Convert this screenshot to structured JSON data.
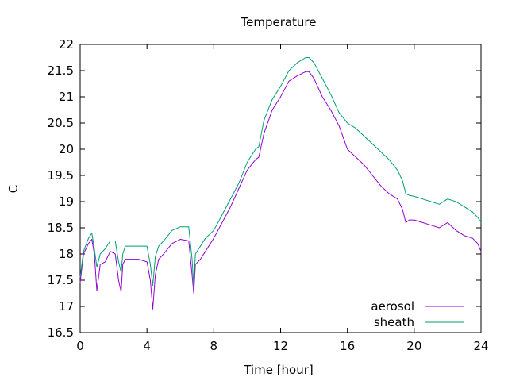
{
  "chart_data": {
    "type": "line",
    "title": "Temperature",
    "xlabel": "Time [hour]",
    "ylabel": "C",
    "xlim": [
      0,
      24
    ],
    "ylim": [
      16.5,
      22
    ],
    "xticks": [
      0,
      4,
      8,
      12,
      16,
      20,
      24
    ],
    "yticks": [
      16.5,
      17,
      17.5,
      18,
      18.5,
      19,
      19.5,
      20,
      20.5,
      21,
      21.5,
      22
    ],
    "legend_position": "bottom-right",
    "grid": false,
    "series": [
      {
        "name": "aerosol",
        "color": "#9400d3",
        "x": [
          0,
          0.2,
          0.5,
          0.7,
          0.85,
          1.0,
          1.2,
          1.5,
          1.8,
          2.1,
          2.3,
          2.45,
          2.55,
          2.7,
          3.0,
          3.5,
          4.0,
          4.2,
          4.35,
          4.5,
          4.7,
          5.0,
          5.5,
          6.0,
          6.5,
          6.7,
          6.8,
          6.9,
          7.2,
          7.5,
          8.0,
          8.5,
          9.0,
          9.5,
          10.0,
          10.5,
          10.7,
          11.0,
          11.5,
          12.0,
          12.5,
          13.0,
          13.5,
          13.7,
          14.0,
          14.5,
          15.0,
          15.5,
          16.0,
          16.5,
          17.0,
          17.5,
          18.0,
          18.5,
          19.0,
          19.3,
          19.5,
          19.7,
          20.0,
          20.5,
          21.0,
          21.5,
          22.0,
          22.5,
          23.0,
          23.5,
          23.8,
          24.0
        ],
        "y": [
          17.45,
          18.0,
          18.2,
          18.28,
          18.0,
          17.3,
          17.8,
          17.85,
          18.05,
          18.0,
          17.5,
          17.28,
          17.8,
          17.9,
          17.9,
          17.9,
          17.85,
          17.5,
          16.95,
          17.6,
          17.9,
          18.0,
          18.2,
          18.28,
          18.25,
          17.6,
          17.25,
          17.8,
          17.9,
          18.05,
          18.3,
          18.6,
          18.9,
          19.25,
          19.6,
          19.8,
          19.85,
          20.3,
          20.75,
          21.0,
          21.3,
          21.4,
          21.48,
          21.48,
          21.35,
          21.0,
          20.75,
          20.45,
          20.0,
          19.85,
          19.7,
          19.5,
          19.3,
          19.15,
          19.05,
          18.85,
          18.6,
          18.65,
          18.65,
          18.6,
          18.55,
          18.5,
          18.6,
          18.45,
          18.35,
          18.3,
          18.2,
          18.05
        ]
      },
      {
        "name": "sheath",
        "color": "#009e73",
        "x": [
          0,
          0.2,
          0.5,
          0.7,
          0.85,
          1.0,
          1.2,
          1.5,
          1.8,
          2.1,
          2.3,
          2.45,
          2.55,
          2.7,
          3.0,
          3.5,
          4.0,
          4.2,
          4.35,
          4.5,
          4.7,
          5.0,
          5.5,
          6.0,
          6.5,
          6.7,
          6.8,
          6.9,
          7.2,
          7.5,
          8.0,
          8.5,
          9.0,
          9.5,
          10.0,
          10.5,
          10.7,
          11.0,
          11.5,
          12.0,
          12.5,
          13.0,
          13.5,
          13.7,
          14.0,
          14.5,
          15.0,
          15.5,
          16.0,
          16.5,
          17.0,
          17.5,
          18.0,
          18.5,
          19.0,
          19.3,
          19.5,
          19.7,
          20.0,
          20.5,
          21.0,
          21.5,
          22.0,
          22.5,
          23.0,
          23.5,
          23.8,
          24.0
        ],
        "y": [
          17.55,
          18.05,
          18.3,
          18.4,
          18.1,
          17.75,
          18.0,
          18.1,
          18.25,
          18.25,
          17.85,
          17.65,
          18.0,
          18.15,
          18.15,
          18.15,
          18.15,
          17.8,
          17.4,
          17.95,
          18.15,
          18.25,
          18.45,
          18.52,
          18.52,
          17.9,
          17.4,
          18.0,
          18.15,
          18.3,
          18.45,
          18.75,
          19.05,
          19.35,
          19.75,
          20.0,
          20.05,
          20.55,
          20.95,
          21.2,
          21.5,
          21.65,
          21.75,
          21.75,
          21.65,
          21.35,
          21.05,
          20.7,
          20.5,
          20.4,
          20.25,
          20.1,
          19.95,
          19.8,
          19.6,
          19.4,
          19.15,
          19.12,
          19.1,
          19.05,
          19.0,
          18.95,
          19.05,
          19.0,
          18.9,
          18.8,
          18.7,
          18.6
        ]
      }
    ]
  }
}
